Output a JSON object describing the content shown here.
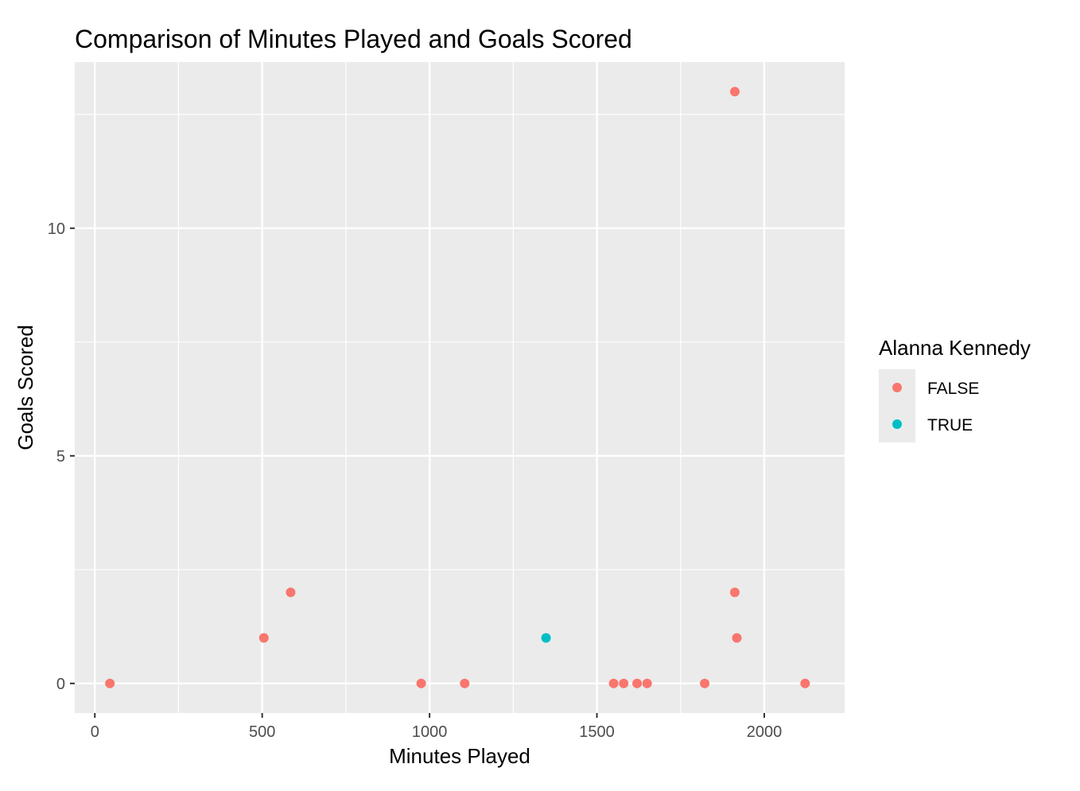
{
  "chart_data": {
    "type": "scatter",
    "title": "Comparison of Minutes Played and Goals Scored",
    "xlabel": "Minutes Played",
    "ylabel": "Goals Scored",
    "xlim": [
      -60,
      2240
    ],
    "ylim": [
      -0.65,
      13.65
    ],
    "x_ticks": [
      0,
      500,
      1000,
      1500,
      2000
    ],
    "x_minor_ticks": [
      250,
      750,
      1250,
      1750
    ],
    "y_ticks": [
      0,
      5,
      10
    ],
    "y_minor_ticks": [
      2.5,
      7.5,
      12.5
    ],
    "x_tick_labels": [
      "0",
      "500",
      "1000",
      "1500",
      "2000"
    ],
    "y_tick_labels": [
      "0",
      "5",
      "10"
    ],
    "grid": true,
    "panel_background": "#ebebeb",
    "legend": {
      "title": "Alanna Kennedy",
      "placement": "right",
      "entries": [
        {
          "label": "FALSE",
          "color": "#f8766d"
        },
        {
          "label": "TRUE",
          "color": "#00bfc4"
        }
      ]
    },
    "series": [
      {
        "name": "FALSE",
        "color": "#f8766d",
        "points": [
          {
            "x": 45,
            "y": 0
          },
          {
            "x": 505,
            "y": 1
          },
          {
            "x": 585,
            "y": 2
          },
          {
            "x": 975,
            "y": 0
          },
          {
            "x": 1105,
            "y": 0
          },
          {
            "x": 1550,
            "y": 0
          },
          {
            "x": 1580,
            "y": 0
          },
          {
            "x": 1620,
            "y": 0
          },
          {
            "x": 1650,
            "y": 0
          },
          {
            "x": 1822,
            "y": 0
          },
          {
            "x": 1912,
            "y": 13
          },
          {
            "x": 1912,
            "y": 2
          },
          {
            "x": 1918,
            "y": 1
          },
          {
            "x": 2122,
            "y": 0
          }
        ]
      },
      {
        "name": "TRUE",
        "color": "#00bfc4",
        "points": [
          {
            "x": 1348,
            "y": 1
          }
        ]
      }
    ]
  }
}
